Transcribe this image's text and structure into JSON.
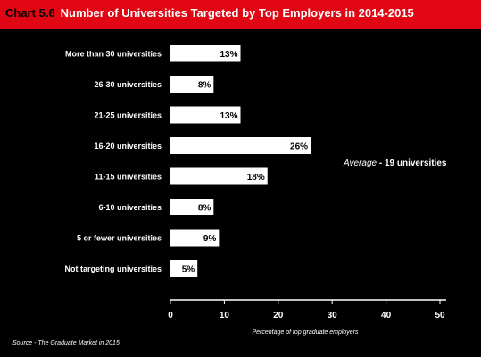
{
  "header": {
    "chart_number": "Chart 5.6",
    "title": "Number of Universities Targeted by Top Employers in 2014-2015"
  },
  "colors": {
    "header_bg": "#e10613",
    "background": "#000000",
    "bar_fill": "#ffffff",
    "text": "#ffffff",
    "value_text": "#000000"
  },
  "source": "Source - The Graduate Market in 2015",
  "annotation": {
    "emphasis": "Average",
    "text": " - 19 universities"
  },
  "chart_data": {
    "type": "bar",
    "orientation": "horizontal",
    "title": "Number of Universities Targeted by Top Employers in 2014-2015",
    "categories": [
      "More than 30 universities",
      "26-30 universities",
      "21-25 universities",
      "16-20 universities",
      "11-15 universities",
      "6-10 universities",
      "5 or fewer universities",
      "Not targeting universities"
    ],
    "values": [
      13,
      8,
      13,
      26,
      18,
      8,
      9,
      5
    ],
    "value_labels": [
      "13%",
      "8%",
      "13%",
      "26%",
      "18%",
      "8%",
      "9%",
      "5%"
    ],
    "xlabel": "Percentage of top graduate employers",
    "ylabel": "",
    "xlim": [
      0,
      50
    ],
    "xticks": [
      0,
      10,
      20,
      30,
      40,
      50
    ],
    "grid": false,
    "legend": "none"
  }
}
